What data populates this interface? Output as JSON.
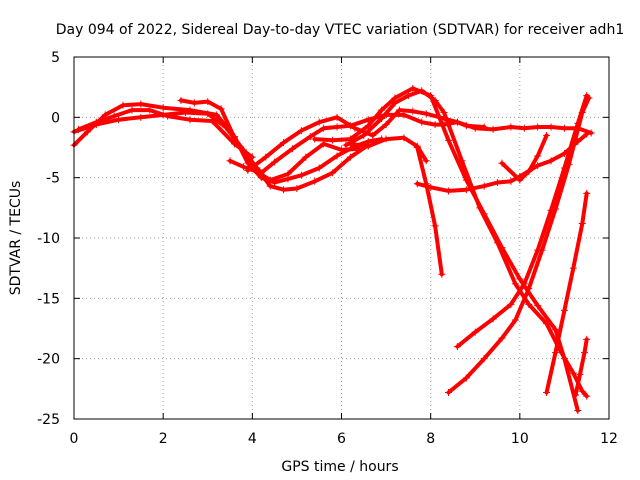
{
  "chart_data": {
    "type": "scatter",
    "title": "Day 094 of 2022, Sidereal Day-to-day VTEC variation (SDTVAR) for receiver adh1",
    "xlabel": "GPS time / hours",
    "ylabel": "SDTVAR / TECUs",
    "xlim": [
      0,
      12
    ],
    "ylim": [
      -25,
      5
    ],
    "xticks": [
      0,
      2,
      4,
      6,
      8,
      10,
      12
    ],
    "yticks": [
      -25,
      -20,
      -15,
      -10,
      -5,
      0,
      5
    ],
    "xtick_labels": [
      "0",
      "2",
      "4",
      "6",
      "8",
      "10",
      "12"
    ],
    "ytick_labels": [
      "-25",
      "-20",
      "-15",
      "-10",
      "-5",
      "0",
      "5"
    ],
    "grid": true,
    "marker": "+",
    "color": "#ff0000",
    "series": [
      {
        "name": "s1",
        "x": [
          0.0,
          0.3,
          0.7,
          1.1,
          1.5,
          2.0,
          2.6,
          3.2,
          3.6,
          3.9,
          4.2,
          4.5,
          4.8,
          5.1,
          5.5,
          5.9,
          6.3,
          6.6,
          6.9
        ],
        "y": [
          -2.3,
          -1.2,
          0.2,
          1.0,
          1.1,
          0.8,
          0.6,
          0.2,
          -1.6,
          -3.8,
          -5.0,
          -5.4,
          -5.1,
          -4.8,
          -4.2,
          -3.2,
          -2.4,
          -2.0,
          -1.8
        ]
      },
      {
        "name": "s2",
        "x": [
          0.0,
          0.5,
          1.0,
          1.5,
          2.0,
          2.5,
          3.0,
          3.4,
          3.8,
          4.1,
          4.4,
          4.7,
          5.0,
          5.4,
          5.8,
          6.2,
          6.6
        ],
        "y": [
          -1.2,
          -0.6,
          -0.2,
          0.0,
          0.2,
          0.4,
          0.3,
          -0.8,
          -2.7,
          -4.2,
          -5.7,
          -6.0,
          -5.9,
          -5.3,
          -4.6,
          -3.3,
          -2.3
        ]
      },
      {
        "name": "s3",
        "x": [
          0.1,
          0.5,
          0.9,
          1.3,
          1.7,
          2.1,
          2.6,
          3.1,
          3.6,
          4.0
        ],
        "y": [
          -1.0,
          -0.4,
          0.1,
          0.6,
          0.6,
          0.1,
          -0.2,
          -0.3,
          -2.2,
          -3.3
        ]
      },
      {
        "name": "s4",
        "x": [
          2.4,
          2.7,
          3.0,
          3.3,
          3.6,
          3.9,
          4.2,
          4.5,
          4.9,
          5.3,
          5.6,
          5.9,
          6.2,
          6.6,
          7.0,
          7.4,
          7.8,
          8.1,
          8.3,
          8.6,
          9.0,
          9.4,
          9.8,
          10.1,
          10.4,
          10.7,
          11.0,
          11.3,
          11.6
        ],
        "y": [
          1.4,
          1.2,
          1.3,
          0.7,
          -1.7,
          -3.4,
          -4.6,
          -3.7,
          -2.6,
          -1.6,
          -0.9,
          -0.8,
          -0.7,
          -0.2,
          0.2,
          0.2,
          -0.4,
          -0.6,
          -0.6,
          -0.4,
          -0.9,
          -1.0,
          -0.8,
          -0.9,
          -0.8,
          -0.8,
          -0.9,
          -0.9,
          -1.3
        ]
      },
      {
        "name": "s5",
        "x": [
          3.9,
          4.3,
          4.7,
          5.1,
          5.5,
          5.9,
          6.3,
          6.7,
          7.0,
          7.3,
          7.6,
          7.9,
          8.3,
          8.6,
          8.8,
          9.2
        ],
        "y": [
          -4.4,
          -3.3,
          -2.1,
          -1.1,
          -0.4,
          0.0,
          -0.9,
          -1.5,
          -0.6,
          0.6,
          0.5,
          0.3,
          -0.1,
          -0.4,
          -0.7,
          -0.8
        ]
      },
      {
        "name": "s6",
        "x": [
          5.4,
          5.8,
          6.2,
          6.6,
          6.9,
          7.2,
          7.6,
          8.0,
          8.4,
          8.8,
          9.2,
          9.6,
          10.0,
          10.4,
          10.8,
          11.0,
          11.3
        ],
        "y": [
          -1.8,
          -1.9,
          -1.8,
          -0.7,
          0.6,
          1.6,
          2.4,
          1.8,
          -1.9,
          -5.2,
          -8.0,
          -10.8,
          -13.4,
          -15.6,
          -17.6,
          -20.0,
          -24.3
        ]
      },
      {
        "name": "s7",
        "x": [
          6.1,
          6.5,
          6.9,
          7.2,
          7.5,
          7.8,
          8.1,
          8.3,
          8.7,
          9.1,
          9.5,
          9.9,
          10.2,
          10.6,
          10.9,
          11.2,
          11.4,
          11.5
        ],
        "y": [
          -2.3,
          -1.5,
          -0.1,
          1.2,
          1.8,
          2.2,
          1.4,
          0.4,
          -3.6,
          -7.5,
          -10.4,
          -13.8,
          -15.5,
          -17.1,
          -19.3,
          -21.2,
          -22.7,
          -23.1
        ]
      },
      {
        "name": "s8",
        "x": [
          6.2,
          6.6,
          7.0,
          7.4,
          7.7,
          7.9
        ],
        "y": [
          -2.2,
          -2.4,
          -1.8,
          -1.7,
          -2.4,
          -3.6
        ]
      },
      {
        "name": "s9",
        "x": [
          3.5,
          3.8,
          4.1,
          4.4,
          4.8,
          5.2,
          5.6,
          6.0,
          6.4
        ],
        "y": [
          -3.6,
          -4.1,
          -4.5,
          -5.2,
          -4.7,
          -3.3,
          -2.2,
          -2.7,
          -2.6
        ]
      },
      {
        "name": "s10",
        "x": [
          7.7,
          8.0,
          8.4,
          8.8,
          9.2,
          9.5,
          9.8,
          10.0,
          10.4,
          10.7,
          11.0,
          11.3,
          11.5
        ],
        "y": [
          -5.5,
          -5.8,
          -6.1,
          -6.0,
          -5.7,
          -5.4,
          -5.3,
          -4.9,
          -4.0,
          -3.6,
          -3.0,
          -2.0,
          -1.4
        ]
      },
      {
        "name": "s11",
        "x": [
          7.7,
          7.9,
          8.1,
          8.25
        ],
        "y": [
          -2.5,
          -5.5,
          -9.0,
          -13.0
        ]
      },
      {
        "name": "s12",
        "x": [
          9.6,
          10.0,
          10.2,
          10.4,
          10.6
        ],
        "y": [
          -3.8,
          -5.2,
          -4.5,
          -3.2,
          -1.5
        ]
      },
      {
        "name": "s13",
        "x": [
          8.6,
          9.0,
          9.4,
          9.8,
          10.1,
          10.4,
          10.7,
          11.0,
          11.3,
          11.5
        ],
        "y": [
          -19.0,
          -17.8,
          -16.7,
          -15.5,
          -13.8,
          -11.0,
          -7.7,
          -4.2,
          -0.5,
          1.8
        ]
      },
      {
        "name": "s14",
        "x": [
          8.4,
          8.8,
          9.2,
          9.6,
          9.9,
          10.2,
          10.5,
          10.8,
          11.1,
          11.4,
          11.55
        ],
        "y": [
          -22.8,
          -21.6,
          -20.0,
          -18.3,
          -16.8,
          -14.2,
          -11.0,
          -7.6,
          -3.9,
          0.4,
          1.6
        ]
      },
      {
        "name": "s15",
        "x": [
          10.6,
          10.8,
          11.0,
          11.2,
          11.4,
          11.5
        ],
        "y": [
          -22.8,
          -19.5,
          -16.0,
          -12.5,
          -8.8,
          -6.3
        ]
      },
      {
        "name": "s16",
        "x": [
          11.25,
          11.35,
          11.45,
          11.5
        ],
        "y": [
          -23.0,
          -21.3,
          -19.5,
          -18.4
        ]
      }
    ]
  }
}
